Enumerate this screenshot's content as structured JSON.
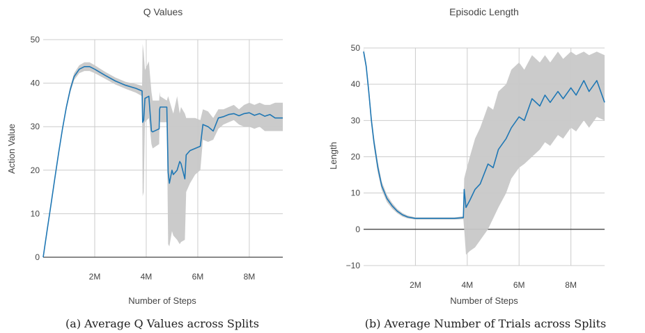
{
  "chart_data": [
    {
      "type": "line",
      "title": "Q Values",
      "xlabel": "Number of Steps",
      "ylabel": "Action Value",
      "caption": "(a) Average Q Values across Splits",
      "xlim": [
        0,
        9300000
      ],
      "ylim": [
        0,
        50
      ],
      "x_ticks": [
        2000000,
        4000000,
        6000000,
        8000000
      ],
      "x_tick_labels": [
        "2M",
        "4M",
        "6M",
        "8M"
      ],
      "y_ticks": [
        0,
        10,
        20,
        30,
        40,
        50
      ],
      "y_tick_labels": [
        "0",
        "10",
        "20",
        "30",
        "40",
        "50"
      ],
      "grid": true,
      "colors": {
        "line": "#1f77b4",
        "band": "#c8c8c8",
        "grid": "#cccccc",
        "zero": "#444444"
      },
      "series": [
        {
          "x": [
            0,
            150000,
            300000,
            450000,
            600000,
            750000,
            900000,
            1050000,
            1200000,
            1400000,
            1600000,
            1800000,
            2000000,
            2400000,
            2800000,
            3200000,
            3600000,
            3840000,
            3860000,
            3900000,
            3950000,
            4100000,
            4200000,
            4250000,
            4500000,
            4520000,
            4540000,
            4800000,
            4850000,
            4900000,
            5000000,
            5050000,
            5200000,
            5300000,
            5350000,
            5500000,
            5550000,
            5700000,
            5900000,
            6100000,
            6200000,
            6400000,
            6600000,
            6800000,
            7000000,
            7200000,
            7400000,
            7600000,
            7800000,
            8000000,
            8200000,
            8400000,
            8600000,
            8800000,
            9000000,
            9300000
          ],
          "y": [
            0,
            6,
            12,
            18,
            24,
            29.5,
            34.5,
            38.5,
            41.5,
            43.2,
            43.8,
            43.8,
            43.2,
            41.8,
            40.5,
            39.5,
            38.8,
            38.2,
            31.0,
            31.5,
            36.5,
            37.0,
            29.0,
            28.8,
            29.5,
            34.0,
            34.5,
            34.5,
            19.5,
            17.0,
            20.0,
            19.0,
            20.0,
            22.0,
            21.5,
            18.0,
            23.5,
            24.5,
            25.0,
            25.5,
            30.5,
            30.0,
            29.0,
            32.0,
            32.3,
            32.8,
            33.0,
            32.5,
            33.0,
            33.2,
            32.6,
            33.0,
            32.4,
            32.8,
            32.0,
            32.0
          ],
          "lower": [
            0,
            5.8,
            11.7,
            17.6,
            23.6,
            29.0,
            33.9,
            37.8,
            40.7,
            42.3,
            42.8,
            42.8,
            42.3,
            41.0,
            39.7,
            38.7,
            37.8,
            37.0,
            14.0,
            15.0,
            31.0,
            32.0,
            26.0,
            25.0,
            26.0,
            32.0,
            31.0,
            31.0,
            3.0,
            2.5,
            6.0,
            5.0,
            4.0,
            3.0,
            3.5,
            4.0,
            15.0,
            17.0,
            19.0,
            20.0,
            27.0,
            26.5,
            27.0,
            29.5,
            30.5,
            31.0,
            31.5,
            30.5,
            30.0,
            30.0,
            29.5,
            30.0,
            29.0,
            29.0,
            29.0,
            29.0
          ],
          "upper": [
            0,
            6.2,
            12.3,
            18.4,
            24.4,
            30.0,
            35.1,
            39.2,
            42.3,
            44.1,
            44.8,
            44.8,
            44.1,
            42.6,
            41.3,
            40.3,
            39.8,
            39.4,
            49.0,
            47.0,
            43.0,
            45.0,
            38.0,
            36.0,
            36.0,
            38.0,
            37.0,
            36.0,
            37.0,
            36.0,
            34.0,
            33.0,
            37.0,
            33.0,
            34.5,
            33.0,
            32.0,
            32.0,
            32.0,
            31.5,
            34.0,
            33.5,
            32.0,
            34.0,
            34.0,
            34.5,
            35.0,
            34.0,
            35.0,
            35.5,
            35.0,
            35.5,
            35.0,
            35.0,
            35.5,
            35.5
          ]
        }
      ]
    },
    {
      "type": "line",
      "title": "Episodic Length",
      "xlabel": "Number of Steps",
      "ylabel": "Length",
      "caption": "(b) Average Number of Trials across Splits",
      "xlim": [
        0,
        9300000
      ],
      "ylim": [
        -10,
        50
      ],
      "x_ticks": [
        2000000,
        4000000,
        6000000,
        8000000
      ],
      "x_tick_labels": [
        "2M",
        "4M",
        "6M",
        "8M"
      ],
      "y_ticks": [
        -10,
        0,
        10,
        20,
        30,
        40,
        50
      ],
      "y_tick_labels": [
        "−10",
        "0",
        "10",
        "20",
        "30",
        "40",
        "50"
      ],
      "grid": true,
      "colors": {
        "line": "#1f77b4",
        "band": "#c8c8c8",
        "grid": "#cccccc",
        "zero": "#444444"
      },
      "series": [
        {
          "x": [
            0,
            100000,
            200000,
            300000,
            400000,
            550000,
            700000,
            900000,
            1100000,
            1300000,
            1500000,
            1700000,
            2000000,
            2500000,
            3000000,
            3500000,
            3850000,
            3880000,
            3950000,
            4100000,
            4300000,
            4500000,
            4800000,
            5000000,
            5200000,
            5500000,
            5700000,
            6000000,
            6200000,
            6500000,
            6800000,
            7000000,
            7200000,
            7500000,
            7700000,
            8000000,
            8200000,
            8500000,
            8700000,
            9000000,
            9300000
          ],
          "y": [
            49,
            45,
            38,
            30,
            24,
            17,
            12,
            8.5,
            6.5,
            5.0,
            4.0,
            3.4,
            3.0,
            3.0,
            3.0,
            3.0,
            3.2,
            11.0,
            6.0,
            8.0,
            11.0,
            12.5,
            18.0,
            17.0,
            22.0,
            25.0,
            28.0,
            31.0,
            30.0,
            36.0,
            34.0,
            37.0,
            35.0,
            38.0,
            36.0,
            39.0,
            37.0,
            41.0,
            38.0,
            41.0,
            35.0
          ],
          "lower": [
            48,
            44,
            36.5,
            28.5,
            22.5,
            15.5,
            10.8,
            7.5,
            5.7,
            4.4,
            3.5,
            3.0,
            2.7,
            2.7,
            2.7,
            2.7,
            2.8,
            0.0,
            -7.0,
            -6.0,
            -5.0,
            -3.0,
            0.0,
            3.0,
            6.0,
            10.0,
            14.0,
            17.0,
            18.0,
            20.0,
            22.0,
            24.0,
            23.0,
            26.0,
            25.0,
            28.0,
            27.0,
            30.0,
            28.0,
            31.0,
            30.0
          ],
          "upper": [
            50,
            46,
            39.5,
            31.5,
            25.5,
            18.5,
            13.2,
            9.5,
            7.3,
            5.6,
            4.5,
            3.8,
            3.3,
            3.3,
            3.3,
            3.3,
            3.6,
            14.0,
            16.0,
            20.0,
            25.0,
            28.0,
            34.0,
            33.0,
            38.0,
            40.0,
            44.0,
            46.0,
            44.0,
            48.0,
            46.0,
            48.0,
            46.0,
            49.0,
            47.0,
            49.0,
            48.0,
            49.0,
            48.0,
            49.0,
            48.0
          ]
        }
      ]
    }
  ]
}
